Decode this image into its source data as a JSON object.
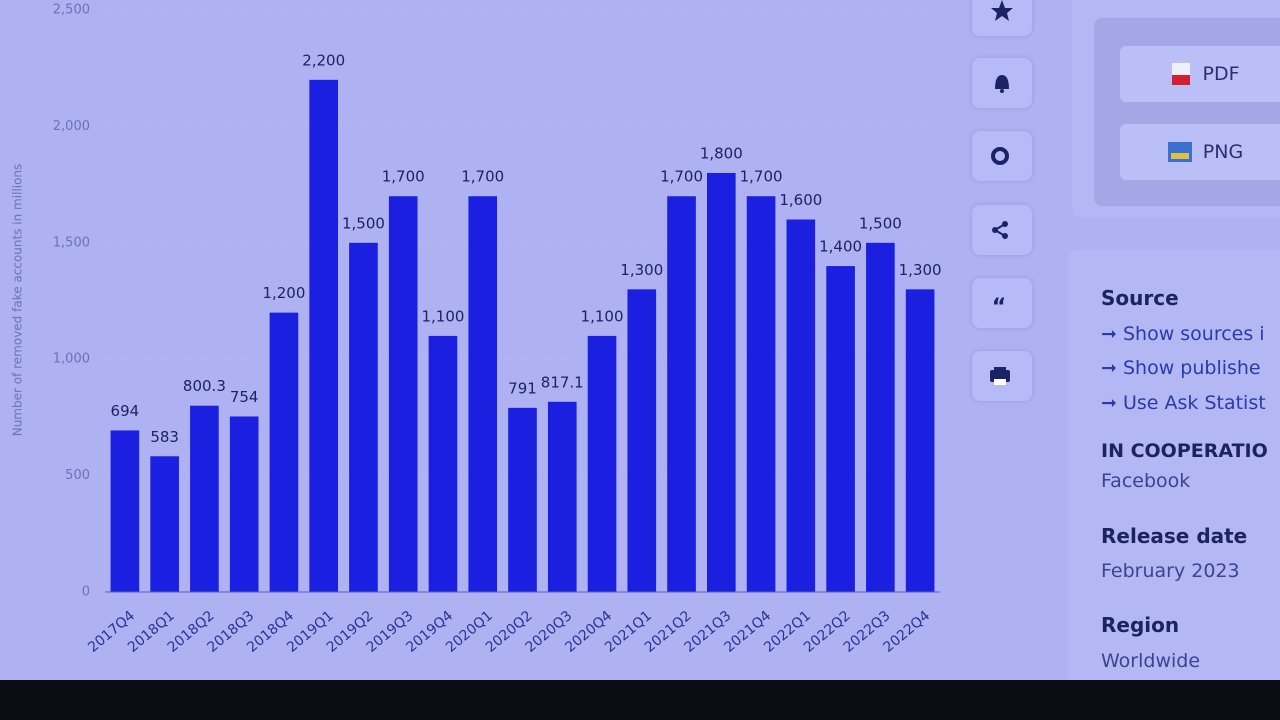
{
  "chart_data": {
    "type": "bar",
    "y_label": "Number of removed fake accounts in millions",
    "categories": [
      "2017Q4",
      "2018Q1",
      "2018Q2",
      "2018Q3",
      "2018Q4",
      "2019Q1",
      "2019Q2",
      "2019Q3",
      "2019Q4",
      "2020Q1",
      "2020Q2",
      "2020Q3",
      "2020Q4",
      "2021Q1",
      "2021Q2",
      "2021Q3",
      "2021Q4",
      "2022Q1",
      "2022Q2",
      "2022Q3",
      "2022Q4"
    ],
    "values": [
      694,
      583,
      800.3,
      754,
      1200,
      2200,
      1500,
      1700,
      1100,
      1700,
      791,
      817.1,
      1100,
      1300,
      1700,
      1800,
      1700,
      1600,
      1400,
      1500,
      1300
    ],
    "value_labels": [
      "694",
      "583",
      "800.3",
      "754",
      "1,200",
      "2,200",
      "1,500",
      "1,700",
      "1,100",
      "1,700",
      "791",
      "817.1",
      "1,100",
      "1,300",
      "1,700",
      "1,800",
      "1,700",
      "1,600",
      "1,400",
      "1,500",
      "1,300"
    ],
    "color": "#1a1fe0",
    "ylim": [
      0,
      2500
    ],
    "yticks": [
      0,
      500,
      {
        "value": 1000,
        "label": "1,000"
      },
      {
        "value": 1500,
        "label": "1,500"
      },
      {
        "value": 2000,
        "label": "2,000"
      },
      {
        "value": 2500,
        "label": "2,500"
      }
    ],
    "grid": true
  },
  "sidebar": {
    "download": {
      "pdf": "PDF",
      "png": "PNG"
    },
    "source": {
      "title": "Source",
      "links": [
        "Show sources i",
        "Show publishe",
        "Use Ask Statist"
      ]
    },
    "cooperation": {
      "title": "IN COOPERATIO",
      "value": "Facebook"
    },
    "release": {
      "title": "Release date",
      "value": "February 2023"
    },
    "region": {
      "title": "Region",
      "value": "Worldwide"
    }
  }
}
